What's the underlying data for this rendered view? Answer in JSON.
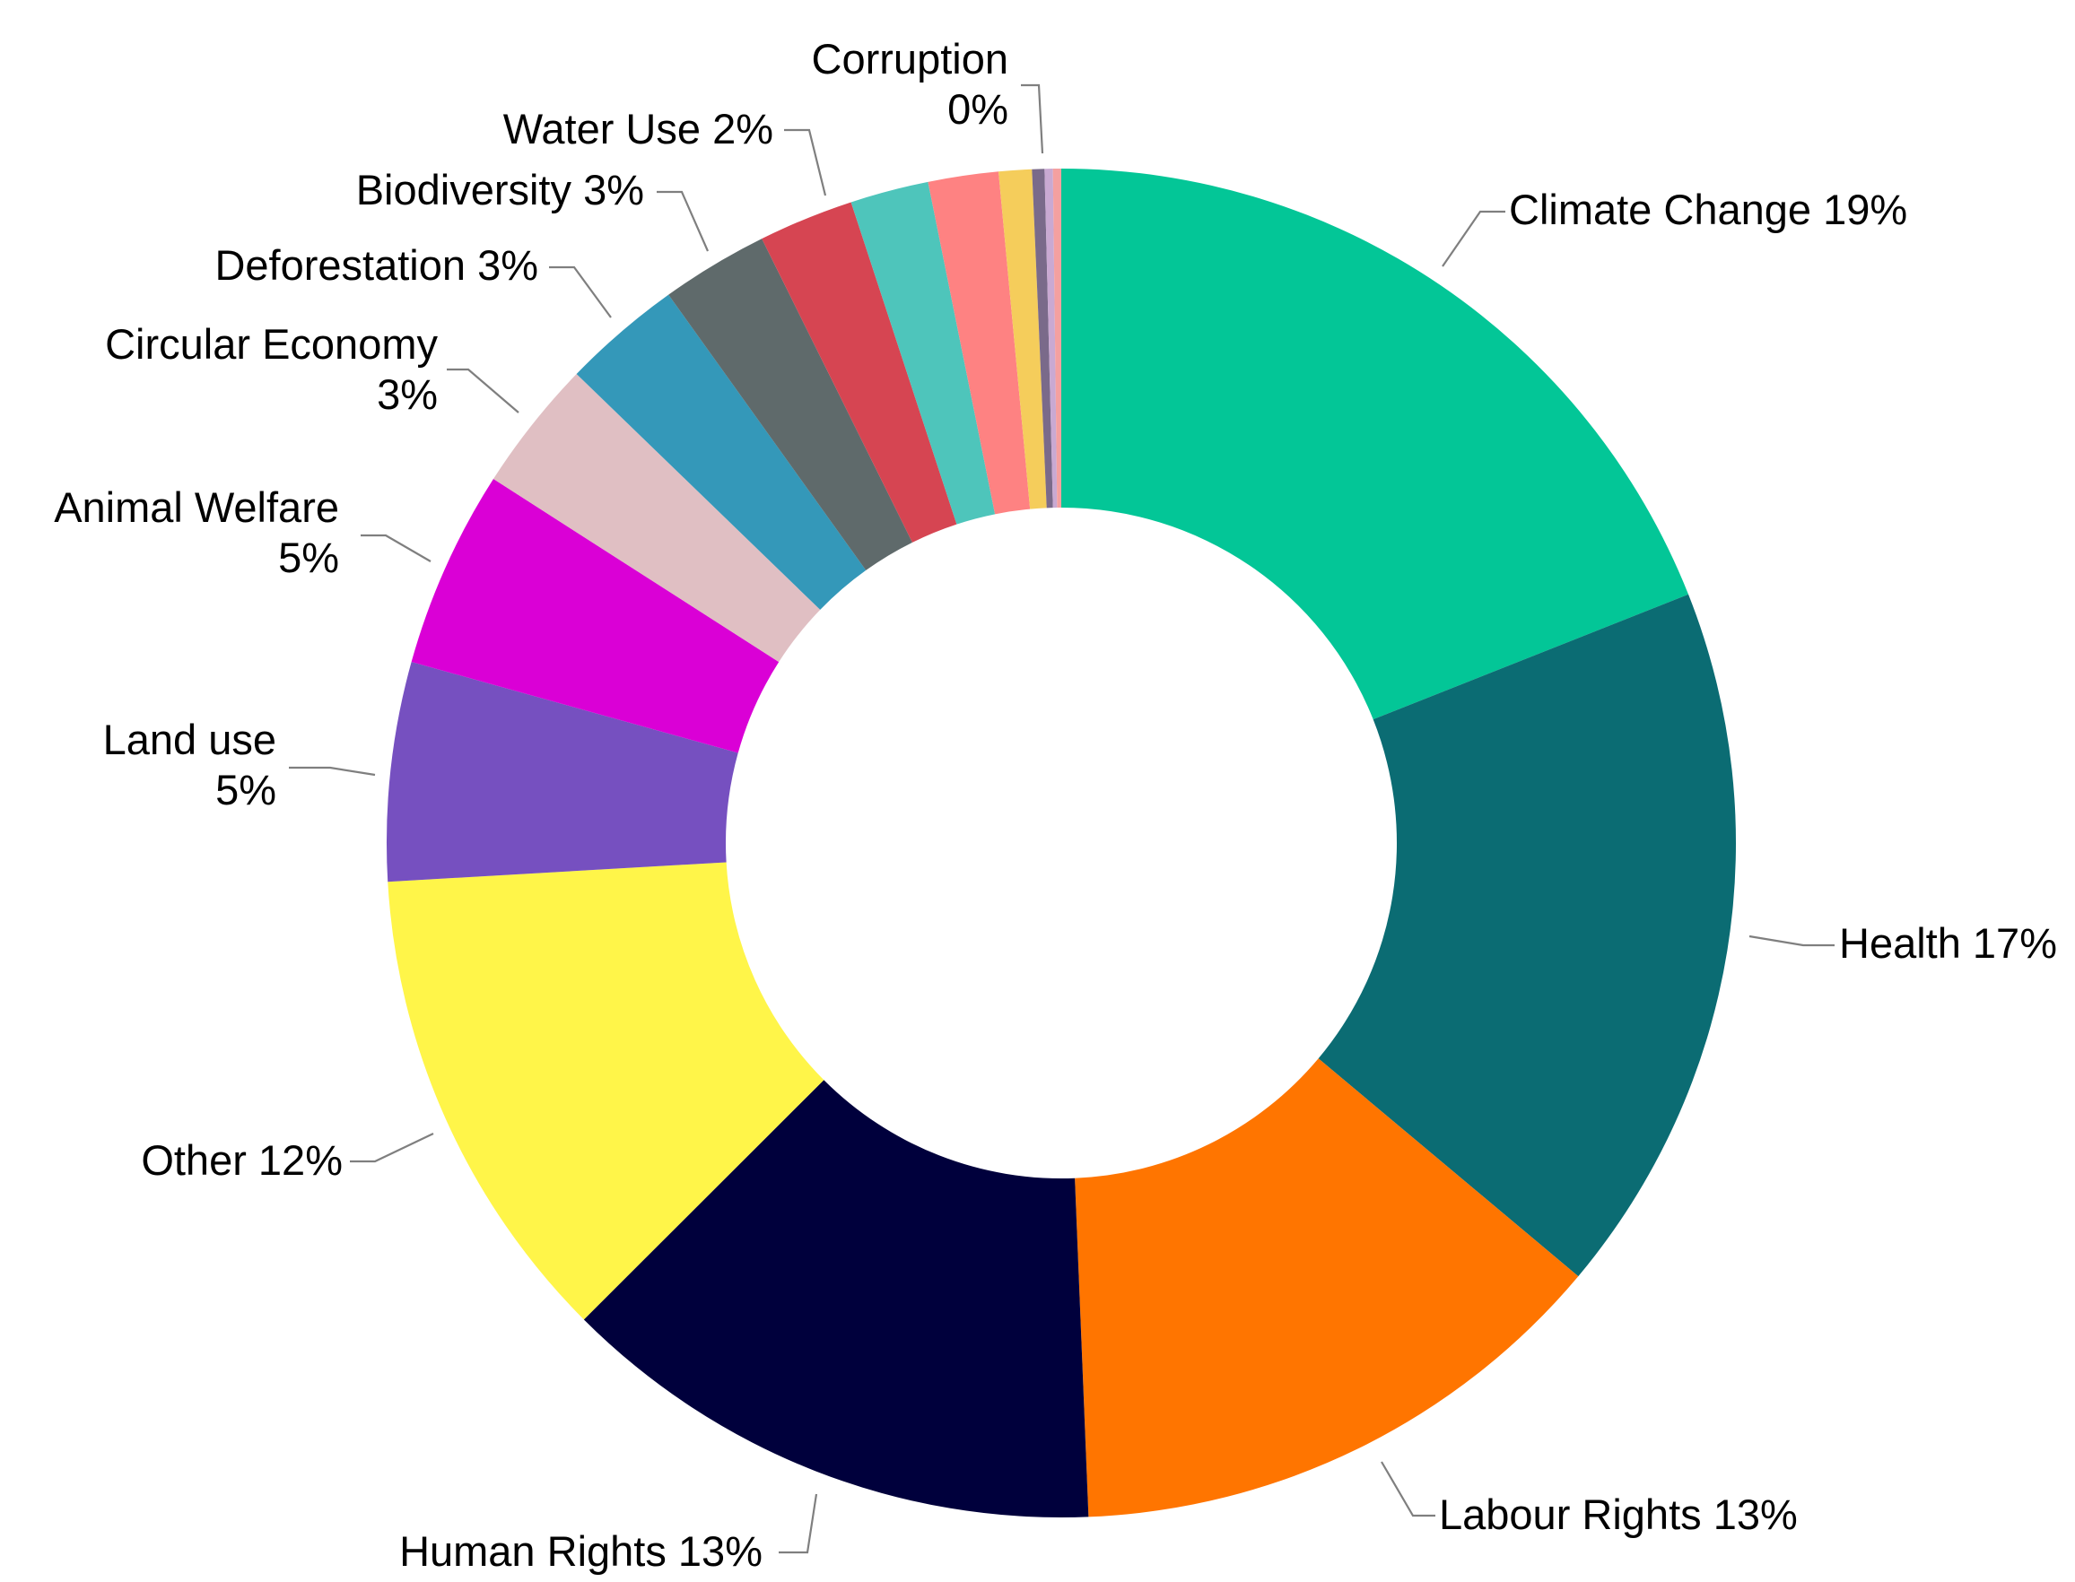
{
  "chart_data": {
    "type": "pie",
    "donut": true,
    "title": "",
    "legend": "none",
    "slices": [
      {
        "label": "Climate Change",
        "display": "19%",
        "value": 19.2,
        "color": "#03c697"
      },
      {
        "label": "Health",
        "display": "17%",
        "value": 17.3,
        "color": "#0b6c73"
      },
      {
        "label": "Labour Rights",
        "display": "13%",
        "value": 13.4,
        "color": "#ff7500"
      },
      {
        "label": "Human Rights",
        "display": "13%",
        "value": 13.3,
        "color": "#00003c"
      },
      {
        "label": "Other",
        "display": "12%",
        "value": 11.7,
        "color": "#fff549"
      },
      {
        "label": "Land use",
        "display": "5%",
        "value": 5.3,
        "color": "#7650c0"
      },
      {
        "label": "Animal Welfare",
        "display": "5%",
        "value": 4.8,
        "color": "#da00d6"
      },
      {
        "label": "Circular Economy",
        "display": "3%",
        "value": 3.2,
        "color": "#e0bfc3"
      },
      {
        "label": "Deforestation",
        "display": "3%",
        "value": 2.9,
        "color": "#3498b9"
      },
      {
        "label": "Biodiversity",
        "display": "3%",
        "value": 2.6,
        "color": "#5f6a6b"
      },
      {
        "label": "Water Use",
        "display": "2%",
        "value": 2.3,
        "color": "#d64552"
      },
      {
        "label": "",
        "display": "",
        "value": 1.9,
        "color": "#4ec5bb"
      },
      {
        "label": "",
        "display": "",
        "value": 1.7,
        "color": "#fe8282"
      },
      {
        "label": "",
        "display": "",
        "value": 0.8,
        "color": "#f5cd5b"
      },
      {
        "label": "",
        "display": "",
        "value": 0.3,
        "color": "#7a6a8a"
      },
      {
        "label": "",
        "display": "",
        "value": 0.2,
        "color": "#c9a9d2"
      },
      {
        "label": "Corruption",
        "display": "0%",
        "value": 0.2,
        "color": "#f4a0a0"
      }
    ]
  }
}
